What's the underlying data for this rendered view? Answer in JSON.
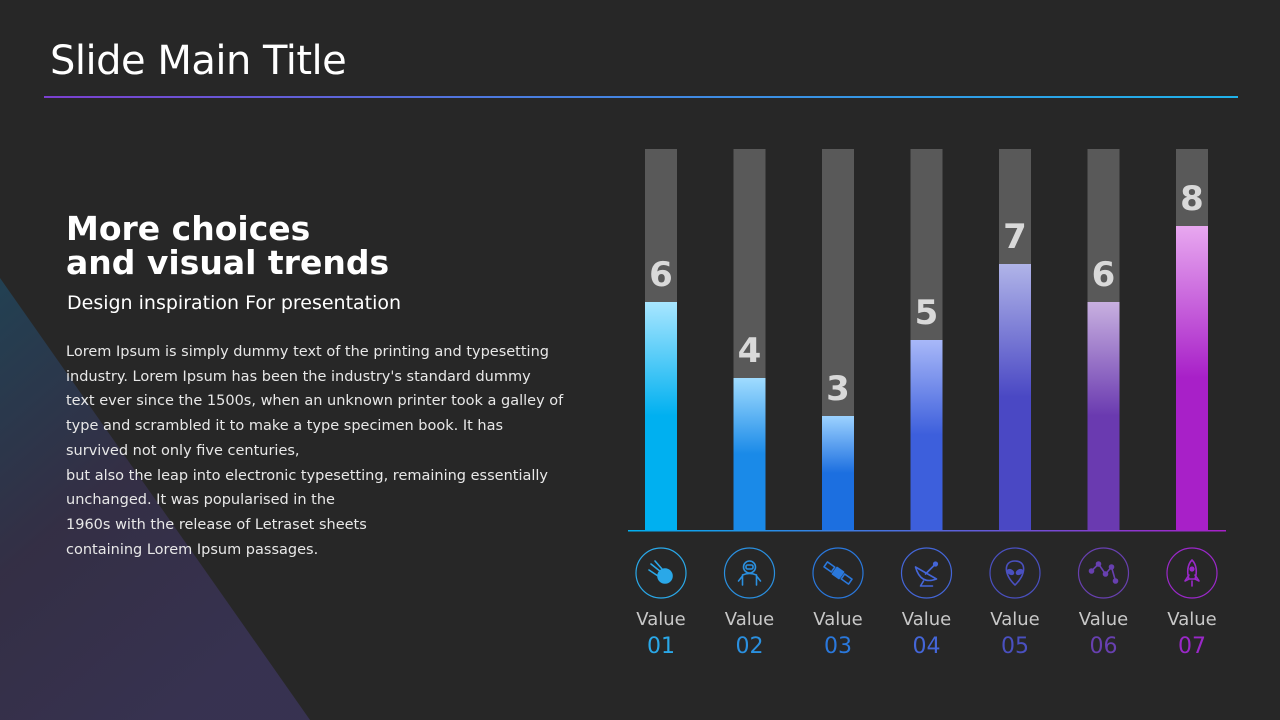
{
  "slide": {
    "title": "Slide Main Title"
  },
  "content": {
    "headline_line1": "More choices",
    "headline_line2": "and visual trends",
    "subheadline": "Design inspiration For presentation",
    "body_lines": [
      "Lorem Ipsum is simply dummy text of the printing and typesetting",
      "industry. Lorem Ipsum has been the industry's standard dummy",
      "text ever since the 1500s, when an unknown printer took a galley of",
      "type and scrambled it to make a type specimen book. It has",
      "survived not only five centuries,",
      "but also the leap into electronic typesetting, remaining essentially",
      "unchanged. It was popularised in the",
      "1960s with the release of Letraset sheets",
      "containing Lorem Ipsum passages."
    ]
  },
  "colors": {
    "background": "#272727",
    "bar_track": "#595959",
    "accent_start": "#00b4f0",
    "accent_end": "#b020d0"
  },
  "chart_data": {
    "type": "bar",
    "ylim": [
      0,
      10
    ],
    "grid": false,
    "legend": "none",
    "categories": [
      "Value 01",
      "Value 02",
      "Value 03",
      "Value 04",
      "Value 05",
      "Value 06",
      "Value 07"
    ],
    "category_word": [
      "Value",
      "Value",
      "Value",
      "Value",
      "Value",
      "Value",
      "Value"
    ],
    "category_num": [
      "01",
      "02",
      "03",
      "04",
      "05",
      "06",
      "07"
    ],
    "values": [
      6,
      4,
      3,
      5,
      7,
      6,
      8
    ],
    "value_labels": [
      "6",
      "4",
      "3",
      "5",
      "7",
      "6",
      "8"
    ],
    "bar_colors_bottom": [
      "#00b0f0",
      "#1a8ae8",
      "#1c6fe0",
      "#3d5fdc",
      "#4a48c4",
      "#6a3ab0",
      "#a820c8"
    ],
    "bar_colors_top": [
      "#a8e6ff",
      "#a0dcff",
      "#9cd2ff",
      "#a8b8f8",
      "#b0b4e8",
      "#c8b0e0",
      "#e8a8f0"
    ],
    "number_colors": [
      "#2aa8e8",
      "#2a90e0",
      "#2a78dc",
      "#4466d8",
      "#4a50c0",
      "#6840b0",
      "#9a28c8"
    ],
    "icons": [
      "comet-icon",
      "astronaut-icon",
      "satellite-icon",
      "satellite-dish-icon",
      "alien-icon",
      "constellation-icon",
      "rocket-icon"
    ]
  }
}
